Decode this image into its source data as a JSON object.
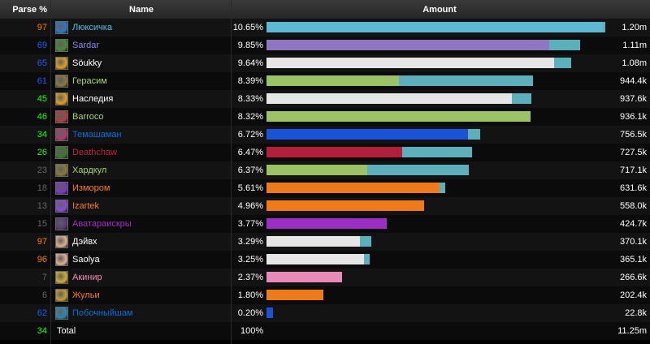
{
  "header": {
    "parse": "Parse %",
    "name": "Name",
    "amount": "Amount"
  },
  "max_amount": 1.2,
  "rows": [
    {
      "parse": "97",
      "parse_color": "#ff8000",
      "name": "Люксичка",
      "name_color": "#3fc7eb",
      "icon": "mage-frost-icon",
      "icon_color": "#2a78c8",
      "percent": "10.65%",
      "amount": "1.20m",
      "bar_color": "#5eb8d3",
      "bar_main": 1.19,
      "bar_total": 1.2
    },
    {
      "parse": "69",
      "parse_color": "#1d5cff",
      "name": "Sardar",
      "name_color": "#8788ee",
      "icon": "warlock-icon",
      "icon_color": "#4a8a3a",
      "percent": "9.85%",
      "amount": "1.11m",
      "bar_color": "#8e76c0",
      "bar_main": 1.0,
      "bar_total": 1.11
    },
    {
      "parse": "65",
      "parse_color": "#1d5cff",
      "name": "Söukky",
      "name_color": "#ffffff",
      "icon": "priest-shadow-icon",
      "icon_color": "#e0a020",
      "percent": "9.64%",
      "amount": "1.08m",
      "bar_color": "#e6e6e6",
      "bar_main": 1.02,
      "bar_total": 1.08
    },
    {
      "parse": "61",
      "parse_color": "#1d5cff",
      "name": "Герасим",
      "name_color": "#aad372",
      "icon": "hunter-icon",
      "icon_color": "#8a7a3a",
      "percent": "8.39%",
      "amount": "944.4k",
      "bar_color": "#9bc265",
      "bar_main": 0.47,
      "bar_total": 0.944
    },
    {
      "parse": "45",
      "parse_color": "#1eff00",
      "name": "Наследия",
      "name_color": "#ffffff",
      "icon": "priest-icon",
      "icon_color": "#e0a020",
      "percent": "8.33%",
      "amount": "937.6k",
      "bar_color": "#e6e6e6",
      "bar_main": 0.87,
      "bar_total": 0.938
    },
    {
      "parse": "46",
      "parse_color": "#1eff00",
      "name": "Barroco",
      "name_color": "#aad372",
      "icon": "hunter-pet-icon",
      "icon_color": "#b04040",
      "percent": "8.32%",
      "amount": "936.1k",
      "bar_color": "#9bc265",
      "bar_main": 0.936,
      "bar_total": 0.936
    },
    {
      "parse": "34",
      "parse_color": "#1eff00",
      "name": "Темашаман",
      "name_color": "#0070dd",
      "icon": "shaman-icon",
      "icon_color": "#b03a6a",
      "percent": "6.72%",
      "amount": "756.5k",
      "bar_color": "#1a52d8",
      "bar_main": 0.715,
      "bar_total": 0.756
    },
    {
      "parse": "26",
      "parse_color": "#1eff00",
      "name": "Deathchaw",
      "name_color": "#c41e3a",
      "icon": "deathknight-icon",
      "icon_color": "#3a7a30",
      "percent": "6.47%",
      "amount": "727.5k",
      "bar_color": "#b31e3a",
      "bar_main": 0.48,
      "bar_total": 0.727
    },
    {
      "parse": "23",
      "parse_color": "#666666",
      "name": "Хардкул",
      "name_color": "#aad372",
      "icon": "hunter-bm-icon",
      "icon_color": "#8a7a3a",
      "percent": "6.37%",
      "amount": "717.1k",
      "bar_color": "#9bc265",
      "bar_main": 0.356,
      "bar_total": 0.717
    },
    {
      "parse": "18",
      "parse_color": "#666666",
      "name": "Измором",
      "name_color": "#ff7c0a",
      "icon": "druid-balance-icon",
      "icon_color": "#7a3ac8",
      "percent": "5.61%",
      "amount": "631.6k",
      "bar_color": "#ee7a1a",
      "bar_main": 0.612,
      "bar_total": 0.632
    },
    {
      "parse": "13",
      "parse_color": "#666666",
      "name": "Izartek",
      "name_color": "#ff7c0a",
      "icon": "druid-icon",
      "icon_color": "#8a4ad8",
      "percent": "4.96%",
      "amount": "558.0k",
      "bar_color": "#ee7a1a",
      "bar_main": 0.558,
      "bar_total": 0.558
    },
    {
      "parse": "15",
      "parse_color": "#666666",
      "name": "Аватараискры",
      "name_color": "#a330c9",
      "icon": "demonhunter-icon",
      "icon_color": "#5a3a7a",
      "percent": "3.77%",
      "amount": "424.7k",
      "bar_color": "#9b2fc4",
      "bar_main": 0.425,
      "bar_total": 0.425
    },
    {
      "parse": "97",
      "parse_color": "#ff8000",
      "name": "Дэйвх",
      "name_color": "#ffffff",
      "icon": "priest-disc-icon",
      "icon_color": "#e0b090",
      "percent": "3.29%",
      "amount": "370.1k",
      "bar_color": "#e6e6e6",
      "bar_main": 0.33,
      "bar_total": 0.37
    },
    {
      "parse": "96",
      "parse_color": "#ff8000",
      "name": "Saolya",
      "name_color": "#ffffff",
      "icon": "priest-holy-icon",
      "icon_color": "#e0b090",
      "percent": "3.25%",
      "amount": "365.1k",
      "bar_color": "#e6e6e6",
      "bar_main": 0.345,
      "bar_total": 0.365
    },
    {
      "parse": "7",
      "parse_color": "#666666",
      "name": "Акинир",
      "name_color": "#f48cba",
      "icon": "paladin-icon",
      "icon_color": "#d0b030",
      "percent": "2.37%",
      "amount": "266.6k",
      "bar_color": "#e78ab7",
      "bar_main": 0.267,
      "bar_total": 0.267
    },
    {
      "parse": "6",
      "parse_color": "#666666",
      "name": "Жульи",
      "name_color": "#ff7c0a",
      "icon": "druid-feral-icon",
      "icon_color": "#c8a030",
      "percent": "1.80%",
      "amount": "202.4k",
      "bar_color": "#ee7a1a",
      "bar_main": 0.202,
      "bar_total": 0.202
    },
    {
      "parse": "62",
      "parse_color": "#1d5cff",
      "name": "Побочныйшам",
      "name_color": "#0070dd",
      "icon": "shaman-enh-icon",
      "icon_color": "#2a8ab0",
      "percent": "0.20%",
      "amount": "22.8k",
      "bar_color": "#1a52d8",
      "bar_main": 0.0228,
      "bar_total": 0.0228
    }
  ],
  "total": {
    "parse": "34",
    "parse_color": "#1eff00",
    "name": "Total",
    "percent": "100%",
    "amount": "11.25m"
  }
}
